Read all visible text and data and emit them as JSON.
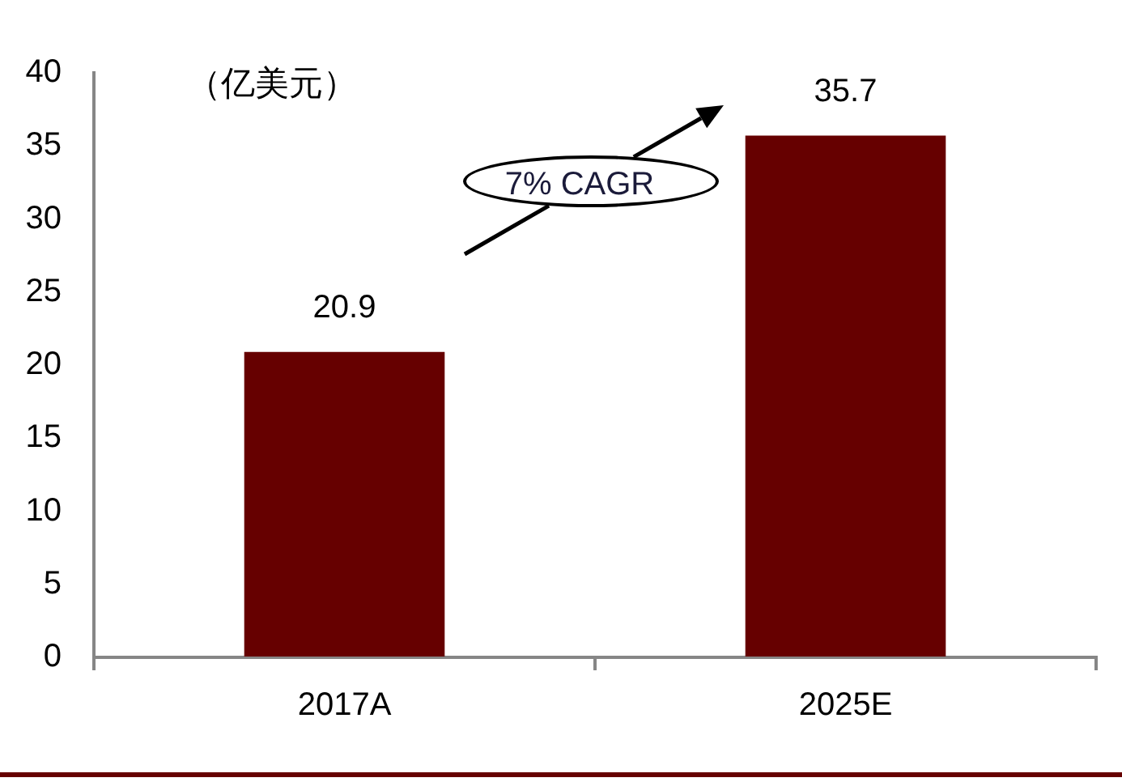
{
  "chart_data": {
    "type": "bar",
    "ylabel": "（亿美元）",
    "annotations": [
      "7% CAGR"
    ],
    "categories": [
      "2017A",
      "2025E"
    ],
    "values": [
      20.9,
      35.7
    ],
    "color": "#660000",
    "ylim": [
      0,
      40
    ],
    "yticks": [
      0,
      5,
      10,
      15,
      20,
      25,
      30,
      35,
      40
    ],
    "data_labels": true
  }
}
